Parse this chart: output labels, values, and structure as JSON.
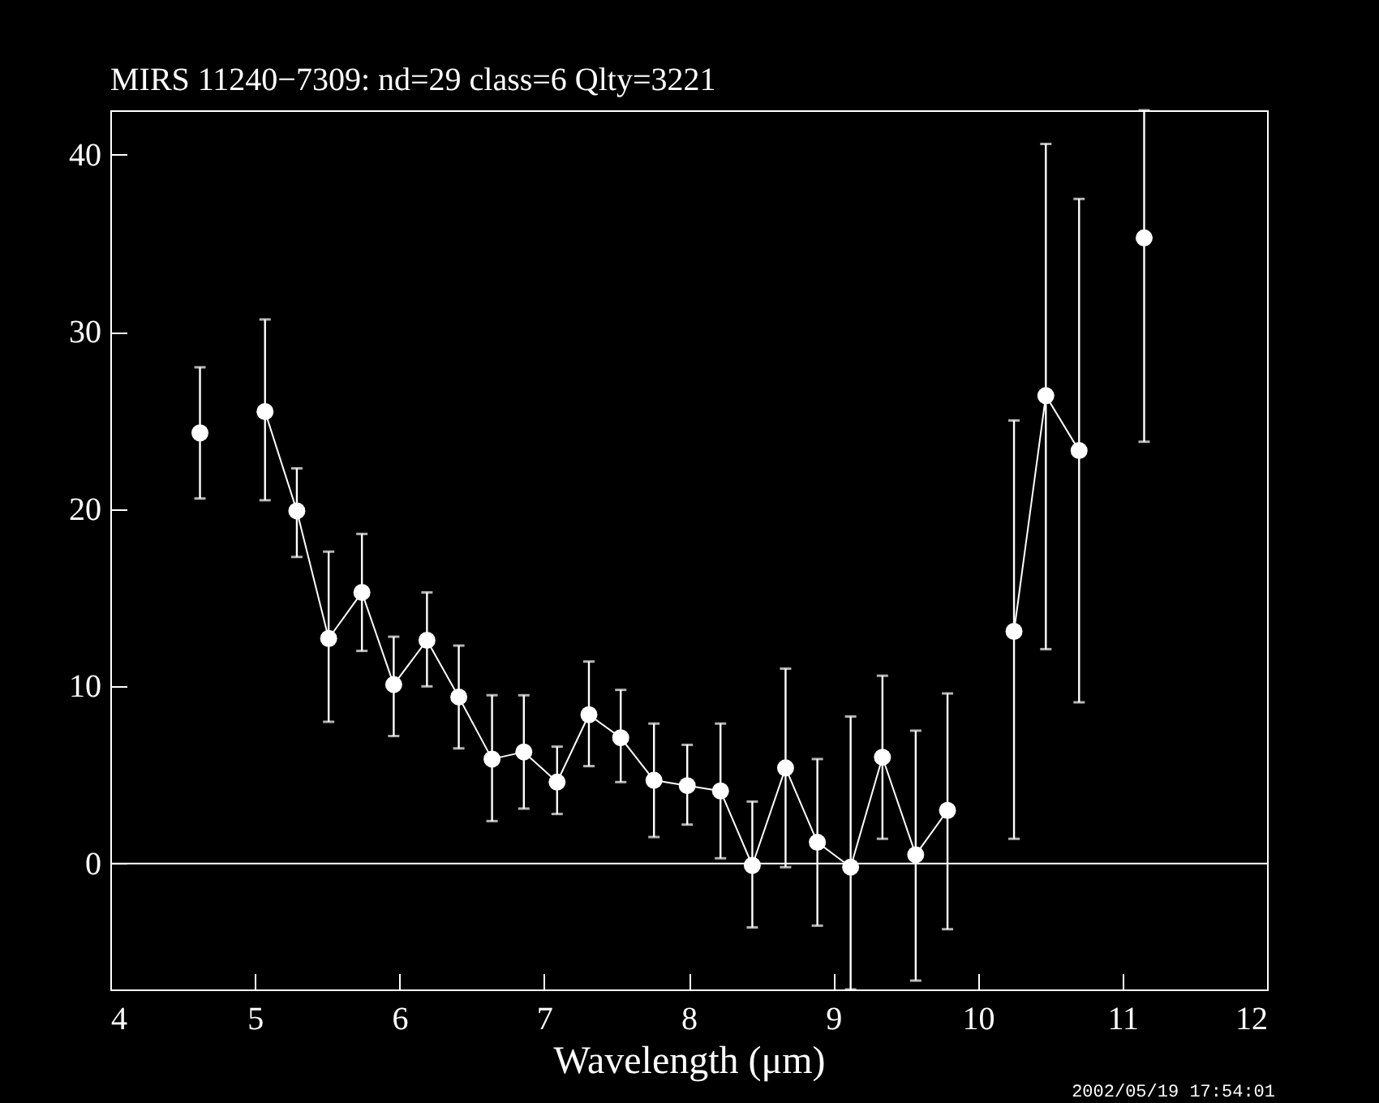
{
  "chart_data": {
    "type": "scatter",
    "title": "MIRS 11240−7309:     nd=29   class=6   Qlty=3221",
    "xlabel": "Wavelength (μm)",
    "xlim": [
      4,
      12
    ],
    "xticks": [
      4,
      5,
      6,
      7,
      8,
      9,
      10,
      11,
      12
    ],
    "ylim": [
      -7.1,
      42.5
    ],
    "yticks": [
      0,
      10,
      20,
      30,
      40
    ],
    "grid": false,
    "marker": "circle",
    "ref_lines": [
      {
        "axis": "y",
        "value": 0,
        "color": "#ffffff"
      }
    ],
    "annotations": [
      "2002/05/19 17:54:01"
    ],
    "series": [
      {
        "type": "line",
        "color": "#ffffff",
        "x": [
          5.07,
          5.29,
          5.51,
          5.74,
          5.96,
          6.19,
          6.41,
          6.64,
          6.86,
          7.09,
          7.31,
          7.53,
          7.76,
          7.99,
          8.22,
          8.44,
          8.67,
          8.89,
          9.12,
          9.34,
          9.57,
          9.79
        ],
        "values": [
          25.5,
          19.9,
          12.7,
          15.3,
          10.1,
          12.6,
          9.4,
          5.9,
          6.3,
          4.6,
          8.4,
          7.1,
          4.7,
          4.4,
          4.1,
          -0.1,
          5.4,
          1.2,
          -0.2,
          6.0,
          0.5,
          3.0
        ],
        "errors": [
          [
            20.5,
            30.7
          ],
          [
            17.3,
            22.3
          ],
          [
            8.0,
            17.6
          ],
          [
            12.0,
            18.6
          ],
          [
            7.2,
            12.8
          ],
          [
            10.0,
            15.3
          ],
          [
            6.5,
            12.3
          ],
          [
            2.4,
            9.5
          ],
          [
            3.1,
            9.5
          ],
          [
            2.8,
            6.6
          ],
          [
            5.5,
            11.4
          ],
          [
            4.6,
            9.8
          ],
          [
            1.5,
            7.9
          ],
          [
            2.2,
            6.7
          ],
          [
            0.3,
            7.9
          ],
          [
            -3.6,
            3.5
          ],
          [
            -0.2,
            11.0
          ],
          [
            -3.5,
            5.9
          ],
          [
            -7.1,
            8.3
          ],
          [
            1.4,
            10.6
          ],
          [
            -6.6,
            7.5
          ],
          [
            -3.7,
            9.6
          ]
        ]
      },
      {
        "type": "line",
        "color": "#ffffff",
        "x": [
          10.25,
          10.47,
          10.7
        ],
        "values": [
          13.1,
          26.4,
          23.3
        ],
        "errors": [
          [
            1.4,
            25.0
          ],
          [
            12.1,
            40.6
          ],
          [
            9.1,
            37.5
          ]
        ]
      },
      {
        "color": "#ffffff",
        "x": [
          4.62,
          11.15
        ],
        "values": [
          24.3,
          35.3
        ],
        "errors": [
          [
            20.6,
            28.0
          ],
          [
            23.8,
            42.5
          ]
        ]
      }
    ]
  }
}
